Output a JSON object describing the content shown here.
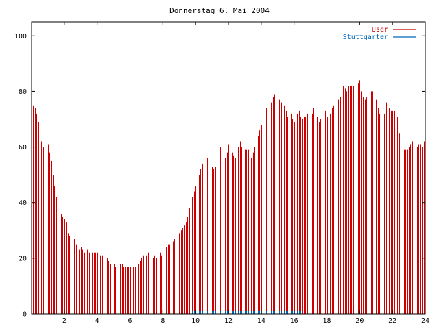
{
  "chart_data": {
    "type": "bar",
    "title": "Donnerstag 6. Mai 2004",
    "xlabel": "",
    "ylabel": "",
    "xlim": [
      0,
      24
    ],
    "ylim": [
      0,
      105
    ],
    "x_ticks": [
      2,
      4,
      6,
      8,
      10,
      12,
      14,
      16,
      18,
      20,
      22,
      24
    ],
    "y_ticks": [
      0,
      20,
      40,
      60,
      80,
      100
    ],
    "grid": false,
    "legend_position": "top-right",
    "series": [
      {
        "name": "User",
        "color": "#cc0000",
        "style": "impulses",
        "points": [
          [
            0.1,
            75
          ],
          [
            0.2,
            74
          ],
          [
            0.3,
            72
          ],
          [
            0.4,
            69
          ],
          [
            0.5,
            68
          ],
          [
            0.6,
            62
          ],
          [
            0.7,
            60
          ],
          [
            0.8,
            61
          ],
          [
            0.9,
            60
          ],
          [
            1.0,
            61
          ],
          [
            1.1,
            58
          ],
          [
            1.2,
            55
          ],
          [
            1.3,
            50
          ],
          [
            1.4,
            46
          ],
          [
            1.5,
            42
          ],
          [
            1.6,
            38
          ],
          [
            1.7,
            37
          ],
          [
            1.8,
            36
          ],
          [
            1.9,
            35
          ],
          [
            2.0,
            34
          ],
          [
            2.1,
            33
          ],
          [
            2.2,
            29
          ],
          [
            2.3,
            28
          ],
          [
            2.4,
            27
          ],
          [
            2.5,
            26
          ],
          [
            2.6,
            27
          ],
          [
            2.7,
            25
          ],
          [
            2.8,
            24
          ],
          [
            2.9,
            23
          ],
          [
            3.0,
            24
          ],
          [
            3.1,
            23
          ],
          [
            3.2,
            22
          ],
          [
            3.3,
            22
          ],
          [
            3.4,
            23
          ],
          [
            3.5,
            22
          ],
          [
            3.6,
            22
          ],
          [
            3.7,
            22
          ],
          [
            3.8,
            22
          ],
          [
            3.9,
            22
          ],
          [
            4.0,
            22
          ],
          [
            4.1,
            22
          ],
          [
            4.2,
            21
          ],
          [
            4.3,
            21
          ],
          [
            4.4,
            20
          ],
          [
            4.5,
            20
          ],
          [
            4.6,
            20
          ],
          [
            4.7,
            19
          ],
          [
            4.8,
            18
          ],
          [
            4.9,
            17
          ],
          [
            5.0,
            18
          ],
          [
            5.1,
            17
          ],
          [
            5.2,
            17
          ],
          [
            5.3,
            18
          ],
          [
            5.4,
            18
          ],
          [
            5.5,
            18
          ],
          [
            5.6,
            17
          ],
          [
            5.7,
            17
          ],
          [
            5.8,
            17
          ],
          [
            5.9,
            17
          ],
          [
            6.0,
            17
          ],
          [
            6.1,
            18
          ],
          [
            6.2,
            17
          ],
          [
            6.3,
            17
          ],
          [
            6.4,
            17
          ],
          [
            6.5,
            18
          ],
          [
            6.6,
            19
          ],
          [
            6.7,
            20
          ],
          [
            6.8,
            21
          ],
          [
            6.9,
            21
          ],
          [
            7.0,
            21
          ],
          [
            7.1,
            22
          ],
          [
            7.2,
            24
          ],
          [
            7.3,
            22
          ],
          [
            7.4,
            20
          ],
          [
            7.5,
            21
          ],
          [
            7.6,
            20
          ],
          [
            7.7,
            21
          ],
          [
            7.8,
            22
          ],
          [
            7.9,
            21
          ],
          [
            8.0,
            22
          ],
          [
            8.1,
            23
          ],
          [
            8.2,
            24
          ],
          [
            8.3,
            25
          ],
          [
            8.4,
            25
          ],
          [
            8.5,
            25
          ],
          [
            8.6,
            26
          ],
          [
            8.7,
            27
          ],
          [
            8.8,
            28
          ],
          [
            8.9,
            28
          ],
          [
            9.0,
            29
          ],
          [
            9.1,
            30
          ],
          [
            9.2,
            31
          ],
          [
            9.3,
            32
          ],
          [
            9.4,
            33
          ],
          [
            9.5,
            35
          ],
          [
            9.6,
            38
          ],
          [
            9.7,
            40
          ],
          [
            9.8,
            42
          ],
          [
            9.9,
            44
          ],
          [
            10.0,
            46
          ],
          [
            10.1,
            48
          ],
          [
            10.2,
            50
          ],
          [
            10.3,
            52
          ],
          [
            10.4,
            54
          ],
          [
            10.5,
            56
          ],
          [
            10.6,
            58
          ],
          [
            10.7,
            56
          ],
          [
            10.8,
            54
          ],
          [
            10.9,
            52
          ],
          [
            11.0,
            53
          ],
          [
            11.1,
            52
          ],
          [
            11.2,
            53
          ],
          [
            11.3,
            55
          ],
          [
            11.4,
            57
          ],
          [
            11.5,
            60
          ],
          [
            11.6,
            55
          ],
          [
            11.7,
            54
          ],
          [
            11.8,
            56
          ],
          [
            11.9,
            58
          ],
          [
            12.0,
            61
          ],
          [
            12.1,
            60
          ],
          [
            12.2,
            58
          ],
          [
            12.3,
            57
          ],
          [
            12.4,
            56
          ],
          [
            12.5,
            58
          ],
          [
            12.6,
            60
          ],
          [
            12.7,
            62
          ],
          [
            12.8,
            60
          ],
          [
            12.9,
            59
          ],
          [
            13.0,
            59
          ],
          [
            13.1,
            59
          ],
          [
            13.2,
            59
          ],
          [
            13.3,
            58
          ],
          [
            13.4,
            56
          ],
          [
            13.5,
            58
          ],
          [
            13.6,
            60
          ],
          [
            13.7,
            62
          ],
          [
            13.8,
            64
          ],
          [
            13.9,
            66
          ],
          [
            14.0,
            68
          ],
          [
            14.1,
            70
          ],
          [
            14.2,
            73
          ],
          [
            14.3,
            74
          ],
          [
            14.4,
            72
          ],
          [
            14.5,
            74
          ],
          [
            14.6,
            76
          ],
          [
            14.7,
            78
          ],
          [
            14.8,
            79
          ],
          [
            14.9,
            80
          ],
          [
            15.0,
            79
          ],
          [
            15.1,
            77
          ],
          [
            15.2,
            76
          ],
          [
            15.3,
            77
          ],
          [
            15.4,
            75
          ],
          [
            15.5,
            73
          ],
          [
            15.6,
            71
          ],
          [
            15.7,
            70
          ],
          [
            15.8,
            72
          ],
          [
            15.9,
            70
          ],
          [
            16.0,
            69
          ],
          [
            16.1,
            70
          ],
          [
            16.2,
            72
          ],
          [
            16.3,
            73
          ],
          [
            16.4,
            71
          ],
          [
            16.5,
            70
          ],
          [
            16.6,
            71
          ],
          [
            16.7,
            71
          ],
          [
            16.8,
            72
          ],
          [
            16.9,
            72
          ],
          [
            17.0,
            70
          ],
          [
            17.1,
            72
          ],
          [
            17.2,
            74
          ],
          [
            17.3,
            73
          ],
          [
            17.4,
            71
          ],
          [
            17.5,
            69
          ],
          [
            17.6,
            70
          ],
          [
            17.7,
            72
          ],
          [
            17.8,
            74
          ],
          [
            17.9,
            73
          ],
          [
            18.0,
            71
          ],
          [
            18.1,
            70
          ],
          [
            18.2,
            72
          ],
          [
            18.3,
            74
          ],
          [
            18.4,
            75
          ],
          [
            18.5,
            76
          ],
          [
            18.6,
            77
          ],
          [
            18.7,
            77
          ],
          [
            18.8,
            78
          ],
          [
            18.9,
            80
          ],
          [
            19.0,
            82
          ],
          [
            19.1,
            81
          ],
          [
            19.2,
            80
          ],
          [
            19.3,
            82
          ],
          [
            19.4,
            82
          ],
          [
            19.5,
            82
          ],
          [
            19.6,
            82
          ],
          [
            19.7,
            83
          ],
          [
            19.8,
            83
          ],
          [
            19.9,
            83
          ],
          [
            20.0,
            84
          ],
          [
            20.1,
            80
          ],
          [
            20.2,
            78
          ],
          [
            20.3,
            77
          ],
          [
            20.4,
            78
          ],
          [
            20.5,
            80
          ],
          [
            20.6,
            80
          ],
          [
            20.7,
            80
          ],
          [
            20.8,
            80
          ],
          [
            20.9,
            79
          ],
          [
            21.0,
            77
          ],
          [
            21.1,
            74
          ],
          [
            21.2,
            72
          ],
          [
            21.3,
            71
          ],
          [
            21.4,
            75
          ],
          [
            21.5,
            72
          ],
          [
            21.6,
            76
          ],
          [
            21.7,
            75
          ],
          [
            21.8,
            74
          ],
          [
            21.9,
            73
          ],
          [
            22.0,
            73
          ],
          [
            22.1,
            73
          ],
          [
            22.2,
            73
          ],
          [
            22.3,
            71
          ],
          [
            22.4,
            65
          ],
          [
            22.5,
            63
          ],
          [
            22.6,
            61
          ],
          [
            22.7,
            59
          ],
          [
            22.8,
            59
          ],
          [
            22.9,
            59
          ],
          [
            23.0,
            60
          ],
          [
            23.1,
            61
          ],
          [
            23.2,
            62
          ],
          [
            23.3,
            61
          ],
          [
            23.4,
            60
          ],
          [
            23.5,
            60
          ],
          [
            23.6,
            61
          ],
          [
            23.7,
            61
          ],
          [
            23.8,
            60
          ],
          [
            23.9,
            62
          ]
        ]
      },
      {
        "name": "Stuttgarter",
        "color": "#0066bb",
        "style": "impulses",
        "points": [
          [
            9.8,
            1
          ],
          [
            9.9,
            1
          ],
          [
            10.0,
            1
          ],
          [
            10.1,
            1
          ],
          [
            10.2,
            1
          ],
          [
            10.3,
            1
          ],
          [
            10.4,
            1
          ],
          [
            10.5,
            1
          ],
          [
            10.6,
            1
          ],
          [
            10.7,
            1
          ],
          [
            10.8,
            1
          ],
          [
            10.9,
            1
          ],
          [
            11.0,
            1
          ],
          [
            11.1,
            1
          ],
          [
            11.2,
            1
          ],
          [
            11.3,
            1
          ],
          [
            11.4,
            1
          ],
          [
            11.5,
            1
          ],
          [
            11.6,
            2
          ],
          [
            11.7,
            2
          ],
          [
            11.8,
            1
          ],
          [
            11.9,
            1
          ],
          [
            12.0,
            1
          ],
          [
            12.1,
            1
          ],
          [
            12.2,
            1
          ],
          [
            12.3,
            1
          ],
          [
            12.4,
            1
          ],
          [
            12.5,
            1
          ],
          [
            12.6,
            1
          ],
          [
            12.7,
            1
          ],
          [
            12.8,
            1
          ],
          [
            12.9,
            1
          ],
          [
            13.0,
            1
          ],
          [
            13.1,
            1
          ],
          [
            13.2,
            1
          ],
          [
            13.3,
            1
          ],
          [
            13.4,
            1
          ],
          [
            13.5,
            1
          ],
          [
            13.6,
            1
          ],
          [
            13.7,
            1
          ],
          [
            13.8,
            1
          ],
          [
            13.9,
            1
          ],
          [
            14.0,
            1
          ],
          [
            14.1,
            1
          ],
          [
            14.2,
            1
          ],
          [
            14.3,
            1
          ],
          [
            14.4,
            1
          ],
          [
            14.5,
            1
          ],
          [
            14.6,
            1
          ],
          [
            14.7,
            1
          ],
          [
            14.8,
            1
          ],
          [
            14.9,
            1
          ],
          [
            15.0,
            1
          ],
          [
            15.1,
            1
          ],
          [
            15.2,
            1
          ],
          [
            15.3,
            1
          ],
          [
            15.4,
            1
          ],
          [
            15.5,
            1
          ],
          [
            15.6,
            1
          ],
          [
            15.7,
            1
          ],
          [
            15.8,
            1
          ],
          [
            15.9,
            1
          ],
          [
            16.0,
            1
          ],
          [
            16.1,
            1
          ],
          [
            16.2,
            1
          ],
          [
            16.3,
            1
          ],
          [
            16.4,
            1
          ]
        ]
      }
    ]
  }
}
